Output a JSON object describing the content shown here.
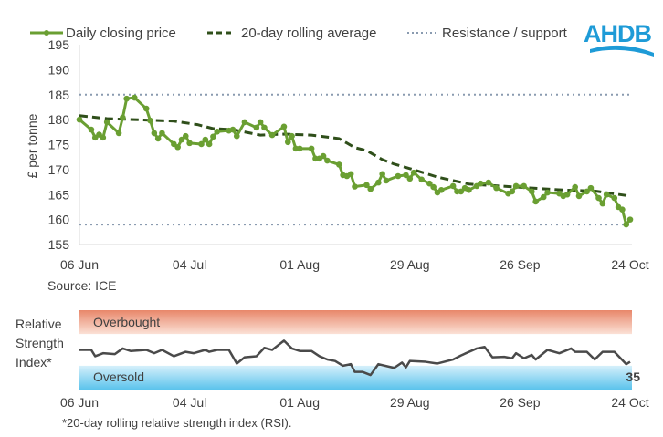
{
  "logo": {
    "text": "AHDB",
    "color": "#1e9bd7"
  },
  "source": "Source: ICE",
  "footnote": "*20-day rolling relative strength index (RSI).",
  "colors": {
    "price": "#6a9f32",
    "average": "#2f4f1a",
    "levels": "#8a9bb0",
    "rsi": "#4a4a4a",
    "overbought": "#e8876a",
    "oversold": "#5bc3ec"
  },
  "chart_data": [
    {
      "type": "line",
      "ylabel": "£ per tonne",
      "ylim": [
        155,
        195
      ],
      "yticks": [
        "155",
        "160",
        "165",
        "170",
        "175",
        "180",
        "185",
        "190",
        "195"
      ],
      "xticks": [
        "06 Jun",
        "04 Jul",
        "01 Aug",
        "29 Aug",
        "26 Sep",
        "24 Oct"
      ],
      "legend": {
        "position": "top",
        "entries": [
          "Daily closing price",
          "20-day rolling average",
          "Resistance / support"
        ]
      },
      "resistance": 185,
      "support": 159,
      "series": [
        {
          "name": "Daily closing price",
          "style": "line-markers",
          "points": [
            [
              "06 Jun",
              180
            ],
            [
              "09 Jun",
              178
            ],
            [
              "10 Jun",
              176.4
            ],
            [
              "11 Jun",
              177
            ],
            [
              "12 Jun",
              176.4
            ],
            [
              "13 Jun",
              179.5
            ],
            [
              "16 Jun",
              177.3
            ],
            [
              "17 Jun",
              180.4
            ],
            [
              "18 Jun",
              184.2
            ],
            [
              "20 Jun",
              184.4
            ],
            [
              "23 Jun",
              182.2
            ],
            [
              "24 Jun",
              179.8
            ],
            [
              "25 Jun",
              177.3
            ],
            [
              "26 Jun",
              176.2
            ],
            [
              "27 Jun",
              177.3
            ],
            [
              "30 Jun",
              175.1
            ],
            [
              "01 Jul",
              174.5
            ],
            [
              "02 Jul",
              176
            ],
            [
              "03 Jul",
              176.7
            ],
            [
              "04 Jul",
              175.3
            ],
            [
              "07 Jul",
              175.1
            ],
            [
              "08 Jul",
              176
            ],
            [
              "09 Jul",
              175.1
            ],
            [
              "10 Jul",
              176.6
            ],
            [
              "11 Jul",
              177.6
            ],
            [
              "14 Jul",
              177.8
            ],
            [
              "15 Jul",
              178
            ],
            [
              "16 Jul",
              176.7
            ],
            [
              "18 Jul",
              179.5
            ],
            [
              "21 Jul",
              178.4
            ],
            [
              "22 Jul",
              179.5
            ],
            [
              "23 Jul",
              178.4
            ],
            [
              "25 Jul",
              176.9
            ],
            [
              "28 Jul",
              178.6
            ],
            [
              "29 Jul",
              175.5
            ],
            [
              "30 Jul",
              176.7
            ],
            [
              "31 Jul",
              174.2
            ],
            [
              "01 Aug",
              174.2
            ],
            [
              "04 Aug",
              174.2
            ],
            [
              "05 Aug",
              172.2
            ],
            [
              "06 Aug",
              172.2
            ],
            [
              "07 Aug",
              172.7
            ],
            [
              "08 Aug",
              171.8
            ],
            [
              "11 Aug",
              171
            ],
            [
              "12 Aug",
              168.9
            ],
            [
              "13 Aug",
              168.7
            ],
            [
              "14 Aug",
              169.1
            ],
            [
              "15 Aug",
              166.6
            ],
            [
              "18 Aug",
              166.9
            ],
            [
              "19 Aug",
              166.1
            ],
            [
              "21 Aug",
              167.4
            ],
            [
              "22 Aug",
              169.1
            ],
            [
              "23 Aug",
              167.8
            ],
            [
              "26 Aug",
              168.7
            ],
            [
              "28 Aug",
              168.9
            ],
            [
              "29 Aug",
              168.2
            ],
            [
              "30 Aug",
              169.4
            ],
            [
              "01 Sep",
              168
            ],
            [
              "03 Sep",
              167.2
            ],
            [
              "04 Sep",
              166.5
            ],
            [
              "05 Sep",
              165.4
            ],
            [
              "06 Sep",
              165.9
            ],
            [
              "09 Sep",
              166.7
            ],
            [
              "10 Sep",
              165.6
            ],
            [
              "11 Sep",
              165.6
            ],
            [
              "12 Sep",
              166.3
            ],
            [
              "13 Sep",
              165.9
            ],
            [
              "15 Sep",
              166.7
            ],
            [
              "16 Sep",
              167.2
            ],
            [
              "18 Sep",
              167.4
            ],
            [
              "20 Sep",
              166.3
            ],
            [
              "23 Sep",
              165.2
            ],
            [
              "24 Sep",
              165.6
            ],
            [
              "25 Sep",
              166.7
            ],
            [
              "27 Sep",
              166.7
            ],
            [
              "29 Sep",
              165.6
            ],
            [
              "30 Sep",
              163.6
            ],
            [
              "02 Oct",
              164.5
            ],
            [
              "03 Oct",
              165.4
            ],
            [
              "06 Oct",
              165.2
            ],
            [
              "07 Oct",
              164.7
            ],
            [
              "08 Oct",
              165
            ],
            [
              "10 Oct",
              166.5
            ],
            [
              "11 Oct",
              164.7
            ],
            [
              "13 Oct",
              165.6
            ],
            [
              "14 Oct",
              166.3
            ],
            [
              "16 Oct",
              164.3
            ],
            [
              "17 Oct",
              163.2
            ],
            [
              "18 Oct",
              165
            ],
            [
              "20 Oct",
              164.3
            ],
            [
              "21 Oct",
              162.5
            ],
            [
              "22 Oct",
              162
            ],
            [
              "23 Oct",
              159
            ],
            [
              "24 Oct",
              160
            ]
          ]
        },
        {
          "name": "20-day rolling average",
          "style": "dashed",
          "points": [
            [
              "06 Jun",
              180.8
            ],
            [
              "13 Jun",
              180.2
            ],
            [
              "20 Jun",
              180
            ],
            [
              "30 Jun",
              179.7
            ],
            [
              "06 Jul",
              179
            ],
            [
              "10 Jul",
              178.2
            ],
            [
              "15 Jul",
              178
            ],
            [
              "22 Jul",
              176.9
            ],
            [
              "28 Jul",
              177.1
            ],
            [
              "04 Aug",
              176.9
            ],
            [
              "11 Aug",
              176.2
            ],
            [
              "13 Aug",
              175.3
            ],
            [
              "15 Aug",
              174.4
            ],
            [
              "18 Aug",
              173.8
            ],
            [
              "22 Aug",
              172
            ],
            [
              "25 Aug",
              171.1
            ],
            [
              "29 Aug",
              170.2
            ],
            [
              "05 Sep",
              168.5
            ],
            [
              "13 Sep",
              167.1
            ],
            [
              "21 Sep",
              166.7
            ],
            [
              "29 Sep",
              166.3
            ],
            [
              "07 Oct",
              165.9
            ],
            [
              "15 Oct",
              165.7
            ],
            [
              "24 Oct",
              164.7
            ]
          ]
        }
      ]
    },
    {
      "type": "line",
      "ylabel": "Relative Strength Index*",
      "ylim": [
        0,
        100
      ],
      "xticks": [
        "06 Jun",
        "04 Jul",
        "01 Aug",
        "29 Aug",
        "26 Sep",
        "24 Oct"
      ],
      "bands": [
        {
          "label": "Overbought",
          "from": 70,
          "to": 100
        },
        {
          "label": "Oversold",
          "from": 0,
          "to": 30
        }
      ],
      "last_value_label": "35",
      "series": [
        {
          "points": [
            [
              "06 Jun",
              50
            ],
            [
              "09 Jun",
              50
            ],
            [
              "10 Jun",
              42
            ],
            [
              "12 Jun",
              45.8
            ],
            [
              "15 Jun",
              44.7
            ],
            [
              "17 Jun",
              51.8
            ],
            [
              "19 Jun",
              48.6
            ],
            [
              "23 Jun",
              50
            ],
            [
              "25 Jun",
              45.8
            ],
            [
              "27 Jun",
              50
            ],
            [
              "30 Jun",
              42
            ],
            [
              "03 Jul",
              47.6
            ],
            [
              "05 Jul",
              45.8
            ],
            [
              "08 Jul",
              50
            ],
            [
              "09 Jul",
              47.6
            ],
            [
              "11 Jul",
              50
            ],
            [
              "14 Jul",
              50
            ],
            [
              "16 Jul",
              32.8
            ],
            [
              "18 Jul",
              40.7
            ],
            [
              "21 Jul",
              42
            ],
            [
              "23 Jul",
              52.6
            ],
            [
              "25 Jul",
              50
            ],
            [
              "28 Jul",
              61.6
            ],
            [
              "30 Jul",
              51.8
            ],
            [
              "01 Aug",
              48.6
            ],
            [
              "04 Aug",
              48.6
            ],
            [
              "06 Aug",
              42
            ],
            [
              "08 Aug",
              37.9
            ],
            [
              "10 Aug",
              36
            ],
            [
              "12 Aug",
              30
            ],
            [
              "14 Aug",
              32
            ],
            [
              "15 Aug",
              22.2
            ],
            [
              "17 Aug",
              22.2
            ],
            [
              "19 Aug",
              18.3
            ],
            [
              "21 Aug",
              32
            ],
            [
              "25 Aug",
              27.3
            ],
            [
              "27 Aug",
              34
            ],
            [
              "28 Aug",
              28
            ],
            [
              "29 Aug",
              36
            ],
            [
              "02 Sep",
              35
            ],
            [
              "05 Sep",
              32.8
            ],
            [
              "09 Sep",
              37.9
            ],
            [
              "11 Sep",
              43
            ],
            [
              "15 Sep",
              51.8
            ],
            [
              "17 Sep",
              53.7
            ],
            [
              "19 Sep",
              40.7
            ],
            [
              "22 Sep",
              41.2
            ],
            [
              "24 Sep",
              39.4
            ],
            [
              "25 Sep",
              45.8
            ],
            [
              "27 Sep",
              39.4
            ],
            [
              "29 Sep",
              43.6
            ],
            [
              "30 Sep",
              37.9
            ],
            [
              "03 Oct",
              50
            ],
            [
              "06 Oct",
              45.8
            ],
            [
              "09 Oct",
              51.8
            ],
            [
              "10 Oct",
              47.6
            ],
            [
              "13 Oct",
              47.6
            ],
            [
              "15 Oct",
              37.9
            ],
            [
              "17 Oct",
              47.6
            ],
            [
              "20 Oct",
              47.6
            ],
            [
              "23 Oct",
              32
            ],
            [
              "24 Oct",
              35
            ]
          ]
        }
      ]
    }
  ]
}
